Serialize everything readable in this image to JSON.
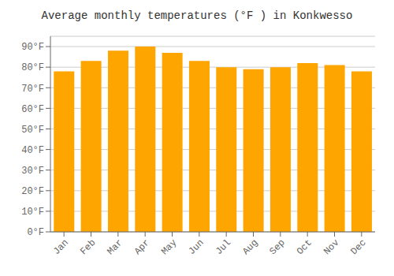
{
  "chart_data": {
    "type": "bar",
    "title": "Average monthly temperatures (°F ) in Konkwesso",
    "categories": [
      "Jan",
      "Feb",
      "Mar",
      "Apr",
      "May",
      "Jun",
      "Jul",
      "Aug",
      "Sep",
      "Oct",
      "Nov",
      "Dec"
    ],
    "values": [
      78,
      83,
      88,
      90,
      87,
      83,
      80,
      79,
      80,
      82,
      81,
      78
    ],
    "color": "#FFA500",
    "ylim": [
      0,
      95
    ],
    "yticks": [
      {
        "value": 0,
        "label": "0°F"
      },
      {
        "value": 10,
        "label": "10°F"
      },
      {
        "value": 20,
        "label": "20°F"
      },
      {
        "value": 30,
        "label": "30°F"
      },
      {
        "value": 40,
        "label": "40°F"
      },
      {
        "value": 50,
        "label": "50°F"
      },
      {
        "value": 60,
        "label": "60°F"
      },
      {
        "value": 70,
        "label": "70°F"
      },
      {
        "value": 80,
        "label": "80°F"
      },
      {
        "value": 90,
        "label": "90°F"
      }
    ],
    "grid": true
  }
}
